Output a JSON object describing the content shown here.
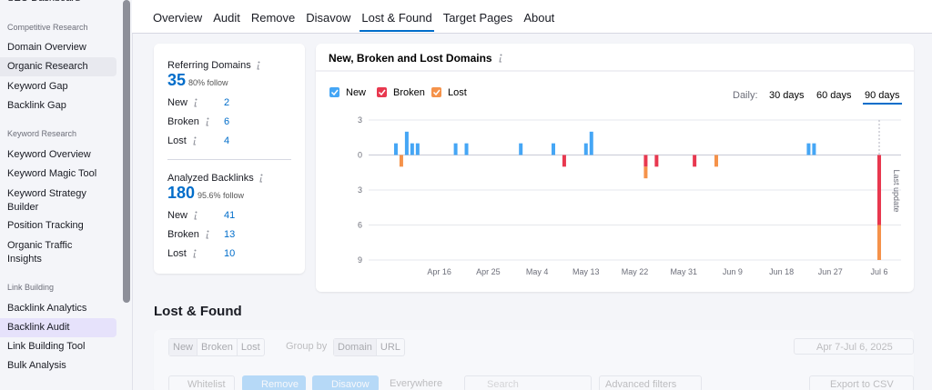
{
  "sidebar": {
    "top": "SEO Dashboard",
    "groups": [
      {
        "title": "Competitive Research",
        "items": [
          "Domain Overview",
          "Organic Research",
          "Keyword Gap",
          "Backlink Gap"
        ]
      },
      {
        "title": "Keyword Research",
        "items": [
          "Keyword Overview",
          "Keyword Magic Tool",
          "Keyword Strategy Builder",
          "Position Tracking",
          "Organic Traffic Insights"
        ]
      },
      {
        "title": "Link Building",
        "items": [
          "Backlink Analytics",
          "Backlink Audit",
          "Link Building Tool",
          "Bulk Analysis"
        ]
      }
    ],
    "hover": [
      0,
      1
    ],
    "active": [
      2,
      1
    ]
  },
  "tabs": {
    "items": [
      "Overview",
      "Audit",
      "Remove",
      "Disavow",
      "Lost & Found",
      "Target Pages",
      "About"
    ],
    "active": 4
  },
  "summary": {
    "blocks": [
      {
        "title": "Referring Domains",
        "total": 35,
        "follow": "80% follow",
        "rows": [
          {
            "label": "New",
            "value": 2
          },
          {
            "label": "Broken",
            "value": 6
          },
          {
            "label": "Lost",
            "value": 4
          }
        ]
      },
      {
        "title": "Analyzed Backlinks",
        "total": 180,
        "follow": "95.6% follow",
        "rows": [
          {
            "label": "New",
            "value": 41
          },
          {
            "label": "Broken",
            "value": 13
          },
          {
            "label": "Lost",
            "value": 10
          }
        ]
      }
    ]
  },
  "chart_data": {
    "type": "bar",
    "stacked": true,
    "title": "New, Broken and Lost Domains",
    "period": {
      "label": "Daily:",
      "options": [
        "30 days",
        "60 days",
        "90 days"
      ],
      "selected": 2
    },
    "annotation": "Last update",
    "categories": [
      null,
      null,
      null,
      null,
      null,
      null,
      null,
      null,
      null,
      "Apr 16",
      null,
      null,
      null,
      null,
      null,
      null,
      null,
      null,
      "Apr 25",
      null,
      null,
      null,
      null,
      null,
      null,
      null,
      null,
      "May 4",
      null,
      null,
      null,
      null,
      null,
      null,
      null,
      null,
      "May 13",
      null,
      null,
      null,
      null,
      null,
      null,
      null,
      null,
      "May 22",
      null,
      null,
      null,
      null,
      null,
      null,
      null,
      null,
      "May 31",
      null,
      null,
      null,
      null,
      null,
      null,
      null,
      null,
      "Jun 9",
      null,
      null,
      null,
      null,
      null,
      null,
      null,
      null,
      "Jun 18",
      null,
      null,
      null,
      null,
      null,
      null,
      null,
      null,
      "Jun 27",
      null,
      null,
      null,
      null,
      null,
      null,
      null,
      null,
      "Jul 6"
    ],
    "series": [
      {
        "name": "New",
        "color": "#45a6f5",
        "values": [
          0,
          1,
          0,
          2,
          1,
          1,
          0,
          0,
          0,
          0,
          0,
          0,
          1,
          0,
          1,
          0,
          0,
          0,
          0,
          0,
          0,
          0,
          0,
          0,
          1,
          0,
          0,
          0,
          0,
          0,
          1,
          0,
          0,
          0,
          0,
          0,
          1,
          2,
          0,
          0,
          0,
          0,
          0,
          0,
          0,
          0,
          0,
          0,
          0,
          0,
          0,
          0,
          0,
          0,
          0,
          0,
          0,
          0,
          0,
          0,
          0,
          0,
          0,
          0,
          0,
          0,
          0,
          0,
          0,
          0,
          0,
          0,
          0,
          0,
          0,
          0,
          0,
          1,
          1,
          0,
          0,
          0,
          0,
          0,
          0,
          0,
          0,
          0,
          0,
          0,
          0
        ]
      },
      {
        "name": "Broken",
        "color": "#e8384f",
        "values": [
          0,
          0,
          0,
          0,
          0,
          0,
          0,
          0,
          0,
          0,
          0,
          0,
          0,
          0,
          0,
          0,
          0,
          0,
          0,
          0,
          0,
          0,
          0,
          0,
          0,
          0,
          0,
          0,
          0,
          0,
          0,
          0,
          -1,
          0,
          0,
          0,
          0,
          0,
          0,
          0,
          0,
          0,
          0,
          0,
          0,
          0,
          0,
          -1,
          0,
          -1,
          0,
          0,
          0,
          0,
          0,
          0,
          -1,
          0,
          0,
          0,
          0,
          0,
          0,
          0,
          0,
          0,
          0,
          0,
          0,
          0,
          0,
          0,
          0,
          0,
          0,
          0,
          0,
          0,
          0,
          0,
          0,
          0,
          0,
          0,
          0,
          0,
          0,
          0,
          0,
          0,
          -6
        ]
      },
      {
        "name": "Lost",
        "color": "#f5924a",
        "values": [
          0,
          0,
          -1,
          0,
          0,
          0,
          0,
          0,
          0,
          0,
          0,
          0,
          0,
          0,
          0,
          0,
          0,
          0,
          0,
          0,
          0,
          0,
          0,
          0,
          0,
          0,
          0,
          0,
          0,
          0,
          0,
          0,
          0,
          0,
          0,
          0,
          0,
          0,
          0,
          0,
          0,
          0,
          0,
          0,
          0,
          0,
          0,
          -1,
          0,
          0,
          0,
          0,
          0,
          0,
          0,
          0,
          0,
          0,
          0,
          0,
          -1,
          0,
          0,
          0,
          0,
          0,
          0,
          0,
          0,
          0,
          0,
          0,
          0,
          0,
          0,
          0,
          0,
          0,
          0,
          0,
          0,
          0,
          0,
          0,
          0,
          0,
          0,
          0,
          0,
          0,
          -3
        ]
      }
    ],
    "ylim": [
      -9,
      3
    ],
    "yticks": [
      3,
      0,
      {
        "value": -3,
        "label": "3"
      },
      {
        "value": -6,
        "label": "6"
      },
      {
        "value": -9,
        "label": "9"
      }
    ],
    "grid": true
  },
  "lost_found": {
    "title": "Lost & Found",
    "filters": [
      "New",
      "Broken",
      "Lost"
    ],
    "group_by_label": "Group by",
    "group_by": [
      "Domain",
      "URL"
    ],
    "date_range": "Apr 7-Jul 6, 2025",
    "actions": [
      "Whitelist",
      "Remove",
      "Disavow"
    ],
    "scope": "Everywhere",
    "search_placeholder": "Search",
    "advanced": "Advanced filters",
    "export": "Export to CSV"
  }
}
